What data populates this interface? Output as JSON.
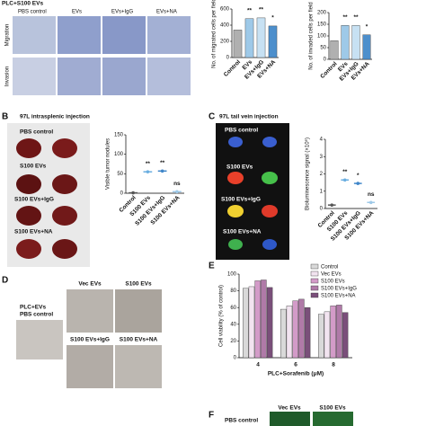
{
  "panels": {
    "a": {
      "header": "PLC+S100 EVs",
      "columns": [
        "PBS control",
        "EVs",
        "EVs+IgG",
        "EVs+NA"
      ],
      "rows": [
        "Migration",
        "Invasion"
      ]
    },
    "b": {
      "label": "B",
      "title": "97L intrasplenic injection",
      "rows": [
        "PBS control",
        "S100 EVs",
        "S100 EVs+IgG",
        "S100 EVs+NA"
      ]
    },
    "c": {
      "label": "C",
      "title": "97L tail vein injection",
      "rows": [
        "PBS control",
        "S100 EVs",
        "S100 EVs+IgG",
        "S100 EVs+NA"
      ]
    },
    "d": {
      "label": "D",
      "side": [
        "PLC+EVs",
        "PBS control"
      ],
      "images": [
        "Vec EVs",
        "S100 EVs",
        "S100 EVs+IgG",
        "S100 EVs+NA"
      ]
    },
    "e": {
      "label": "E"
    },
    "f": {
      "label": "F",
      "images": [
        "Vec EVs",
        "S100 EVs"
      ],
      "row": "PBS control"
    }
  },
  "chart_data": [
    {
      "type": "bar",
      "ylabel": "No. of migrated cells per field",
      "categories": [
        "Control",
        "EVs",
        "EVs+IgG",
        "EVs+NA"
      ],
      "values": [
        340,
        480,
        490,
        390
      ],
      "colors": [
        "#b0b0b0",
        "#9ec9e8",
        "#c7e1f3",
        "#4d8fcc"
      ],
      "ylim": [
        0,
        600
      ],
      "yticks": [
        0,
        200,
        400,
        600
      ],
      "annotations": [
        null,
        "**",
        "**",
        "*"
      ]
    },
    {
      "type": "bar",
      "ylabel": "No. of invaded cells per field",
      "categories": [
        "Control",
        "EVs",
        "EVs+IgG",
        "EVs+NA"
      ],
      "values": [
        80,
        145,
        145,
        105
      ],
      "colors": [
        "#b0b0b0",
        "#9ec9e8",
        "#c7e1f3",
        "#4d8fcc"
      ],
      "ylim": [
        0,
        200
      ],
      "yticks": [
        0,
        50,
        100,
        150,
        200
      ],
      "annotations": [
        null,
        "**",
        "**",
        "*"
      ]
    },
    {
      "type": "dot",
      "ylabel": "Visible tumor nodules",
      "categories": [
        "Control",
        "S100 EVs",
        "S100 EVs+IgG",
        "S100 EVs+NA"
      ],
      "values": [
        1,
        55,
        57,
        4
      ],
      "colors": [
        "#555555",
        "#6aaee0",
        "#3f86c9",
        "#9ec9e8"
      ],
      "ylim": [
        0,
        150
      ],
      "yticks": [
        0,
        50,
        100,
        150
      ],
      "annotations": [
        null,
        "**",
        "**",
        "ns"
      ]
    },
    {
      "type": "dot",
      "ylabel": "Bioluminescence signal (×10⁶)",
      "categories": [
        "Control",
        "S100 EVs",
        "S100 EVs+IgG",
        "S100 EVs+NA"
      ],
      "values": [
        0.2,
        1.65,
        1.45,
        0.35
      ],
      "colors": [
        "#555555",
        "#6aaee0",
        "#3f86c9",
        "#9ec9e8"
      ],
      "ylim": [
        0,
        4
      ],
      "yticks": [
        0,
        1,
        2,
        3,
        4
      ],
      "annotations": [
        null,
        "**",
        "*",
        "ns"
      ]
    },
    {
      "type": "grouped-bar",
      "ylabel": "Cell viability (% of control)",
      "xlabel": "PLC+Sorafenib (μM)",
      "categories": [
        "4",
        "6",
        "8"
      ],
      "ylim": [
        0,
        100
      ],
      "yticks": [
        0,
        20,
        40,
        60,
        80,
        100
      ],
      "series": [
        {
          "name": "Control",
          "color": "#d9d9d9",
          "values": [
            83,
            58,
            52
          ]
        },
        {
          "name": "Vec EVs",
          "color": "#f2e4f0",
          "values": [
            85,
            62,
            55
          ]
        },
        {
          "name": "S100 EVs",
          "color": "#d39bc8",
          "values": [
            92,
            68,
            62
          ]
        },
        {
          "name": "S100 EVs+IgG",
          "color": "#b07aa8",
          "values": [
            93,
            70,
            63
          ]
        },
        {
          "name": "S100 EVs+NA",
          "color": "#7a4f7a",
          "values": [
            84,
            60,
            54
          ]
        }
      ]
    }
  ]
}
